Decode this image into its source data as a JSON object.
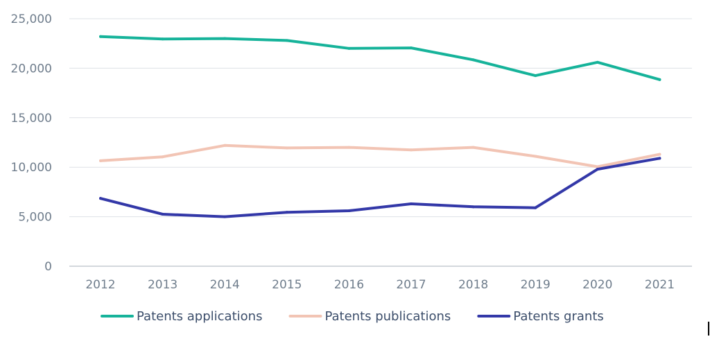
{
  "chart_data": {
    "type": "line",
    "title": "",
    "xlabel": "",
    "ylabel": "",
    "categories": [
      "2012",
      "2013",
      "2014",
      "2015",
      "2016",
      "2017",
      "2018",
      "2019",
      "2020",
      "2021"
    ],
    "ylim": [
      0,
      25000
    ],
    "yticks": [
      0,
      5000,
      10000,
      15000,
      20000,
      25000
    ],
    "ytick_labels": [
      "0",
      "5,000",
      "10,000",
      "15,000",
      "20,000",
      "25,000"
    ],
    "grid": true,
    "legend_position": "bottom",
    "series": [
      {
        "name": "Patents applications",
        "color": "#16b39a",
        "values": [
          23200,
          22950,
          23000,
          22800,
          22000,
          22050,
          20850,
          19250,
          20600,
          18850
        ]
      },
      {
        "name": "Patents publications",
        "color": "#f2c4b4",
        "values": [
          10650,
          11050,
          12200,
          11950,
          12000,
          11750,
          12000,
          11100,
          10050,
          11300
        ]
      },
      {
        "name": "Patents grants",
        "color": "#3338a8",
        "values": [
          6850,
          5250,
          5000,
          5450,
          5600,
          6300,
          6000,
          5900,
          9800,
          10900
        ]
      }
    ]
  }
}
